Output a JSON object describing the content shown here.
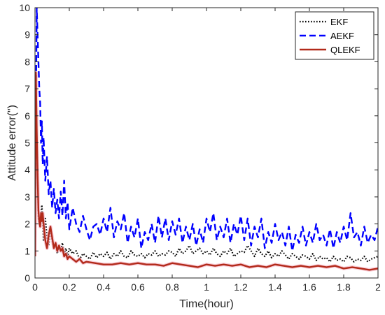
{
  "chart_data": {
    "type": "line",
    "title": "",
    "xlabel": "Time(hour)",
    "ylabel": "Attitude error(\")",
    "xlim": [
      0,
      2
    ],
    "ylim": [
      0,
      10
    ],
    "xticks": [
      "0",
      "0.2",
      "0.4",
      "0.6",
      "0.8",
      "1",
      "1.2",
      "1.4",
      "1.6",
      "1.8",
      "2"
    ],
    "yticks": [
      "0",
      "1",
      "2",
      "3",
      "4",
      "5",
      "6",
      "7",
      "8",
      "9",
      "10"
    ],
    "grid": false,
    "legend_position": "top-right",
    "series": [
      {
        "name": "EKF",
        "color": "#000000",
        "style": "dotted",
        "x": [
          0,
          0.005,
          0.01,
          0.015,
          0.02,
          0.03,
          0.04,
          0.05,
          0.06,
          0.07,
          0.08,
          0.09,
          0.1,
          0.11,
          0.12,
          0.13,
          0.14,
          0.15,
          0.16,
          0.17,
          0.18,
          0.19,
          0.2,
          0.22,
          0.24,
          0.26,
          0.28,
          0.3,
          0.32,
          0.34,
          0.36,
          0.38,
          0.4,
          0.42,
          0.44,
          0.46,
          0.48,
          0.5,
          0.52,
          0.54,
          0.56,
          0.58,
          0.6,
          0.62,
          0.64,
          0.66,
          0.68,
          0.7,
          0.72,
          0.74,
          0.76,
          0.78,
          0.8,
          0.82,
          0.84,
          0.86,
          0.88,
          0.9,
          0.92,
          0.94,
          0.96,
          0.98,
          1.0,
          1.02,
          1.04,
          1.06,
          1.08,
          1.1,
          1.12,
          1.14,
          1.16,
          1.18,
          1.2,
          1.22,
          1.24,
          1.26,
          1.28,
          1.3,
          1.32,
          1.34,
          1.36,
          1.38,
          1.4,
          1.42,
          1.44,
          1.46,
          1.48,
          1.5,
          1.52,
          1.54,
          1.56,
          1.58,
          1.6,
          1.62,
          1.64,
          1.66,
          1.68,
          1.7,
          1.72,
          1.74,
          1.76,
          1.78,
          1.8,
          1.82,
          1.84,
          1.86,
          1.88,
          1.9,
          1.92,
          1.94,
          1.96,
          1.98,
          2.0
        ],
        "y": [
          3.5,
          7.4,
          5.2,
          4.0,
          2.2,
          1.9,
          2.7,
          1.4,
          2.2,
          1.5,
          1.2,
          1.8,
          1.4,
          1.1,
          1.3,
          0.9,
          1.2,
          1.0,
          1.3,
          0.9,
          1.1,
          0.8,
          1.1,
          0.9,
          1.0,
          0.7,
          0.9,
          0.8,
          0.7,
          0.95,
          0.75,
          0.9,
          0.8,
          0.95,
          0.7,
          0.9,
          0.8,
          1.0,
          0.8,
          0.75,
          1.0,
          0.85,
          0.8,
          0.9,
          0.75,
          0.9,
          0.85,
          1.0,
          0.8,
          0.9,
          0.85,
          1.0,
          0.95,
          0.8,
          1.1,
          0.9,
          1.0,
          1.2,
          0.9,
          1.0,
          1.1,
          0.9,
          1.0,
          0.85,
          1.1,
          0.9,
          0.8,
          1.0,
          0.9,
          1.1,
          0.8,
          0.9,
          1.0,
          0.95,
          1.2,
          1.0,
          0.8,
          1.1,
          0.9,
          0.8,
          1.0,
          0.75,
          0.9,
          0.8,
          1.0,
          0.85,
          0.7,
          0.9,
          0.8,
          0.7,
          0.85,
          0.8,
          0.7,
          0.9,
          0.65,
          0.8,
          0.7,
          0.75,
          0.6,
          0.8,
          0.65,
          0.7,
          0.6,
          0.8,
          0.75,
          0.6,
          0.7,
          0.65,
          0.8,
          0.6,
          0.7,
          0.75,
          0.8
        ]
      },
      {
        "name": "AEKF",
        "color": "#0000ff",
        "style": "dashed",
        "x": [
          0,
          0.005,
          0.01,
          0.015,
          0.02,
          0.025,
          0.03,
          0.035,
          0.04,
          0.045,
          0.05,
          0.06,
          0.07,
          0.08,
          0.09,
          0.1,
          0.11,
          0.12,
          0.13,
          0.14,
          0.15,
          0.16,
          0.17,
          0.18,
          0.19,
          0.2,
          0.22,
          0.24,
          0.26,
          0.28,
          0.3,
          0.32,
          0.34,
          0.36,
          0.38,
          0.4,
          0.42,
          0.44,
          0.46,
          0.48,
          0.5,
          0.52,
          0.54,
          0.56,
          0.58,
          0.6,
          0.62,
          0.64,
          0.66,
          0.68,
          0.7,
          0.72,
          0.74,
          0.76,
          0.78,
          0.8,
          0.82,
          0.84,
          0.86,
          0.88,
          0.9,
          0.92,
          0.94,
          0.96,
          0.98,
          1.0,
          1.02,
          1.04,
          1.06,
          1.08,
          1.1,
          1.12,
          1.14,
          1.16,
          1.18,
          1.2,
          1.22,
          1.24,
          1.26,
          1.28,
          1.3,
          1.32,
          1.34,
          1.36,
          1.38,
          1.4,
          1.42,
          1.44,
          1.46,
          1.48,
          1.5,
          1.52,
          1.54,
          1.56,
          1.58,
          1.6,
          1.62,
          1.64,
          1.66,
          1.68,
          1.7,
          1.72,
          1.74,
          1.76,
          1.78,
          1.8,
          1.82,
          1.84,
          1.86,
          1.88,
          1.9,
          1.92,
          1.94,
          1.96,
          1.98,
          2.0
        ],
        "y": [
          1.5,
          6.0,
          10.0,
          9.0,
          8.0,
          7.0,
          6.5,
          5.0,
          5.8,
          4.2,
          5.2,
          3.6,
          4.5,
          3.1,
          3.6,
          2.6,
          3.3,
          2.4,
          2.9,
          2.2,
          3.2,
          2.3,
          3.6,
          2.2,
          2.8,
          1.8,
          2.6,
          2.0,
          1.7,
          2.3,
          1.8,
          1.4,
          1.9,
          2.0,
          1.6,
          2.2,
          1.7,
          2.6,
          1.5,
          2.1,
          1.8,
          2.4,
          1.3,
          1.9,
          1.5,
          2.2,
          1.1,
          1.7,
          1.4,
          2.0,
          1.3,
          2.3,
          1.5,
          2.2,
          1.4,
          2.1,
          1.6,
          2.2,
          1.3,
          1.9,
          1.4,
          2.0,
          1.2,
          1.8,
          1.3,
          2.2,
          1.7,
          2.4,
          1.4,
          1.9,
          1.5,
          2.2,
          1.3,
          2.0,
          1.6,
          2.3,
          1.4,
          2.2,
          1.2,
          1.9,
          1.5,
          2.2,
          1.1,
          1.7,
          1.3,
          2.0,
          1.4,
          1.7,
          1.2,
          1.9,
          1.0,
          1.6,
          1.3,
          1.9,
          1.2,
          1.7,
          1.3,
          2.0,
          1.4,
          1.6,
          1.2,
          1.8,
          1.1,
          1.7,
          1.3,
          1.9,
          1.4,
          2.4,
          1.5,
          1.7,
          1.2,
          1.9,
          1.3,
          1.6,
          1.4,
          1.9
        ]
      },
      {
        "name": "QLEKF",
        "color": "#b22a1a",
        "style": "solid",
        "x": [
          0,
          0.005,
          0.01,
          0.015,
          0.02,
          0.025,
          0.03,
          0.035,
          0.04,
          0.045,
          0.05,
          0.06,
          0.07,
          0.08,
          0.09,
          0.1,
          0.11,
          0.12,
          0.13,
          0.14,
          0.15,
          0.16,
          0.17,
          0.18,
          0.19,
          0.2,
          0.22,
          0.24,
          0.26,
          0.28,
          0.3,
          0.35,
          0.4,
          0.45,
          0.5,
          0.55,
          0.6,
          0.65,
          0.7,
          0.75,
          0.8,
          0.85,
          0.9,
          0.95,
          1.0,
          1.05,
          1.1,
          1.15,
          1.2,
          1.25,
          1.3,
          1.35,
          1.4,
          1.45,
          1.5,
          1.55,
          1.6,
          1.65,
          1.7,
          1.75,
          1.8,
          1.85,
          1.9,
          1.95,
          2.0
        ],
        "y": [
          0.8,
          7.6,
          5.5,
          3.8,
          2.5,
          2.1,
          1.9,
          2.4,
          2.1,
          2.4,
          2.0,
          1.4,
          1.1,
          1.6,
          1.9,
          1.5,
          1.1,
          1.3,
          1.0,
          1.2,
          1.0,
          1.1,
          0.8,
          0.9,
          0.7,
          0.8,
          0.7,
          0.6,
          0.7,
          0.55,
          0.6,
          0.55,
          0.5,
          0.5,
          0.55,
          0.5,
          0.55,
          0.5,
          0.5,
          0.45,
          0.55,
          0.5,
          0.45,
          0.4,
          0.5,
          0.45,
          0.5,
          0.45,
          0.5,
          0.4,
          0.45,
          0.4,
          0.5,
          0.45,
          0.4,
          0.45,
          0.4,
          0.45,
          0.4,
          0.45,
          0.35,
          0.4,
          0.35,
          0.3,
          0.35
        ]
      }
    ]
  }
}
